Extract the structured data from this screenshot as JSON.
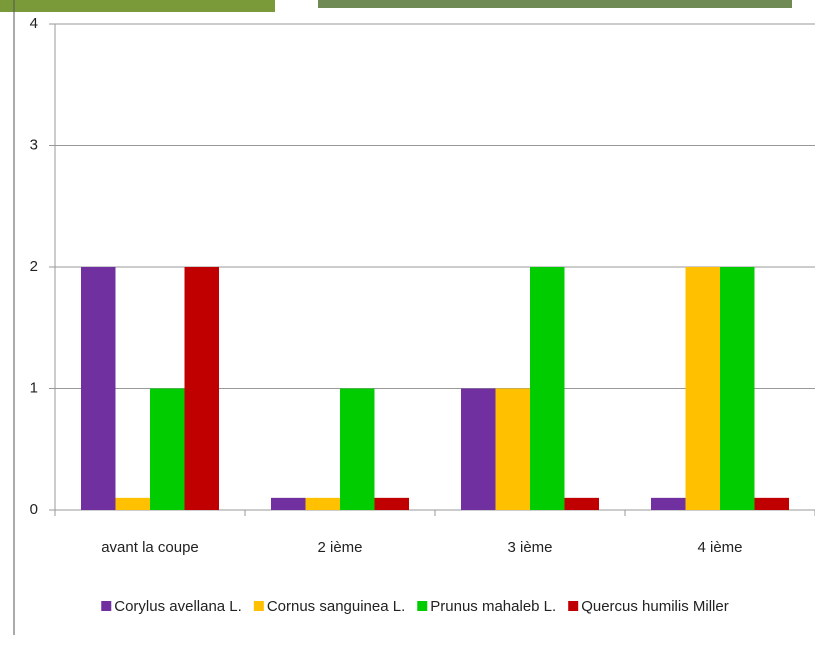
{
  "chart_data": {
    "type": "bar",
    "categories": [
      "avant la coupe",
      "2 ième",
      "3 ième",
      "4 ième"
    ],
    "series": [
      {
        "name": "Corylus avellana L.",
        "color": "#7030a0",
        "values": [
          2,
          0.1,
          1,
          0.1
        ]
      },
      {
        "name": "Cornus sanguinea L.",
        "color": "#ffc000",
        "values": [
          0.1,
          0.1,
          1,
          2
        ]
      },
      {
        "name": "Prunus mahaleb L.",
        "color": "#00cc00",
        "values": [
          1,
          1,
          2,
          2
        ]
      },
      {
        "name": "Quercus humilis Miller",
        "color": "#c00000",
        "values": [
          2,
          0.1,
          0.1,
          0.1
        ]
      }
    ],
    "ylim": [
      0,
      4
    ],
    "yticks": [
      0,
      1,
      2,
      3,
      4
    ],
    "grid": true,
    "legend": "bottom"
  }
}
